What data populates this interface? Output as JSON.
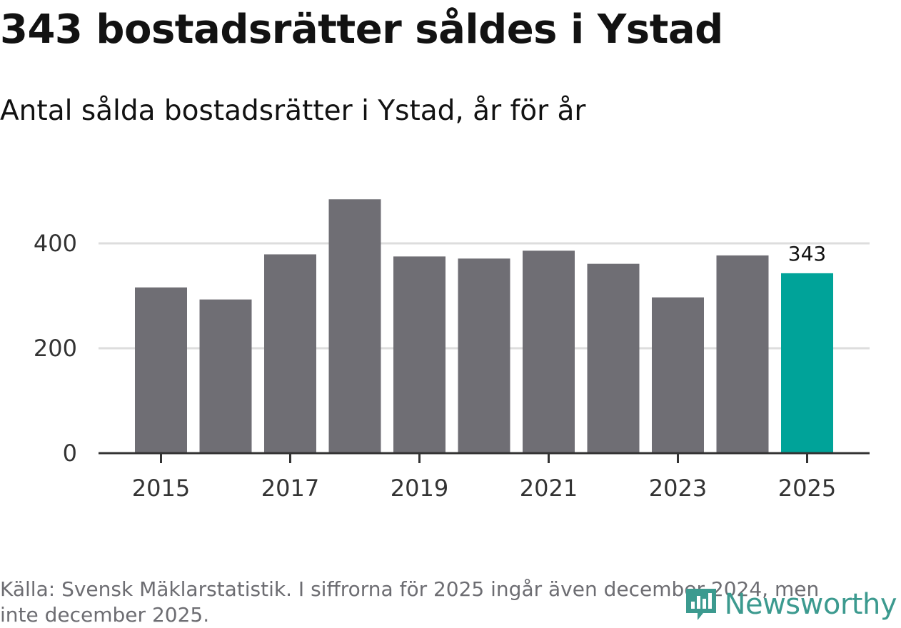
{
  "header": {
    "title": "343 bostadsrätter såldes i Ystad",
    "subtitle": "Antal sålda bostadsrätter i Ystad, år för år"
  },
  "footer": {
    "source": "Källa: Svensk Mäklarstatistik. I siffrorna för 2025 ingår även december 2024, men inte december 2025.",
    "logo_text": "Newsworthy"
  },
  "colors": {
    "bar": "#6f6e74",
    "highlight": "#00a399",
    "grid": "#dddddd",
    "axis": "#333333",
    "logo": "#3c9a8f"
  },
  "chart_data": {
    "type": "bar",
    "title": "343 bostadsrätter såldes i Ystad",
    "subtitle": "Antal sålda bostadsrätter i Ystad, år för år",
    "xlabel": "",
    "ylabel": "",
    "categories": [
      "2015",
      "2016",
      "2017",
      "2018",
      "2019",
      "2020",
      "2021",
      "2022",
      "2023",
      "2024",
      "2025"
    ],
    "values": [
      316,
      293,
      379,
      484,
      375,
      371,
      386,
      361,
      297,
      377,
      343
    ],
    "x_tick_labels": [
      "2015",
      "2017",
      "2019",
      "2021",
      "2023",
      "2025"
    ],
    "y_ticks": [
      0,
      200,
      400
    ],
    "ylim": [
      0,
      500
    ],
    "grid": true,
    "highlight_category": "2025",
    "data_labels": [
      {
        "category": "2025",
        "label": "343"
      }
    ]
  }
}
